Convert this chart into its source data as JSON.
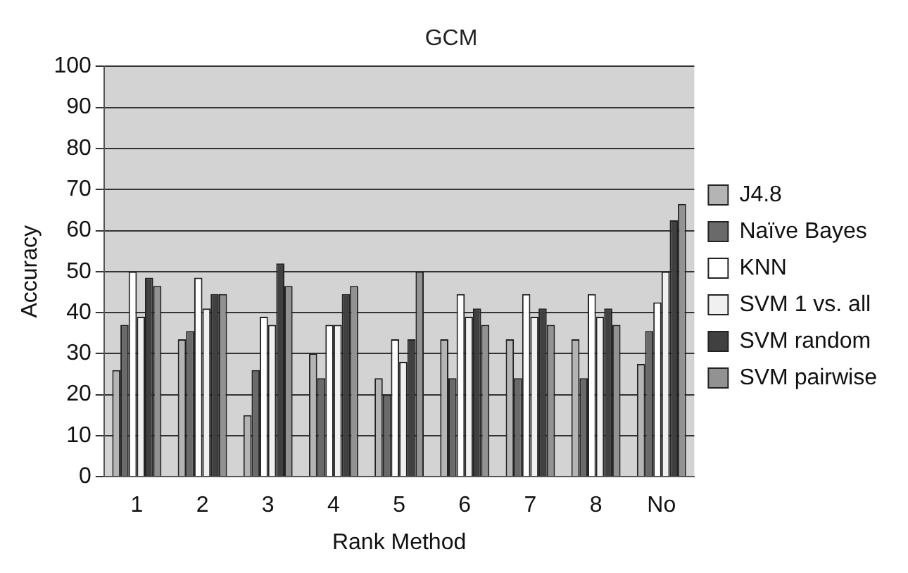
{
  "chart_data": {
    "type": "bar",
    "title": "GCM",
    "xlabel": "Rank Method",
    "ylabel": "Accuracy",
    "categories": [
      "1",
      "2",
      "3",
      "4",
      "5",
      "6",
      "7",
      "8",
      "No"
    ],
    "series": [
      {
        "name": "J4.8",
        "color": "#b4b4b4",
        "values": [
          26,
          33.5,
          15,
          30,
          24,
          33.5,
          33.5,
          33.5,
          27.5
        ]
      },
      {
        "name": "Naïve Bayes",
        "color": "#6a6a6a",
        "values": [
          37,
          35.5,
          26,
          24,
          20,
          24,
          24,
          24,
          35.5
        ]
      },
      {
        "name": "KNN",
        "color": "#ffffff",
        "values": [
          50,
          48.5,
          39,
          37,
          33.5,
          44.5,
          44.5,
          44.5,
          42.5
        ]
      },
      {
        "name": "SVM 1 vs. all",
        "color": "#f0f0f0",
        "values": [
          39,
          41,
          37,
          37,
          28,
          39,
          39,
          39,
          50
        ]
      },
      {
        "name": "SVM random",
        "color": "#404040",
        "values": [
          48.5,
          44.5,
          52,
          44.5,
          33.5,
          41,
          41,
          41,
          62.5
        ]
      },
      {
        "name": "SVM pairwise",
        "color": "#929292",
        "values": [
          46.5,
          44.5,
          46.5,
          46.5,
          50,
          37,
          37,
          37,
          66.5
        ]
      }
    ],
    "ylim": [
      0,
      100
    ],
    "yticks": [
      0,
      10,
      20,
      30,
      40,
      50,
      60,
      70,
      80,
      90,
      100
    ],
    "grid": "y",
    "legend": "right"
  }
}
